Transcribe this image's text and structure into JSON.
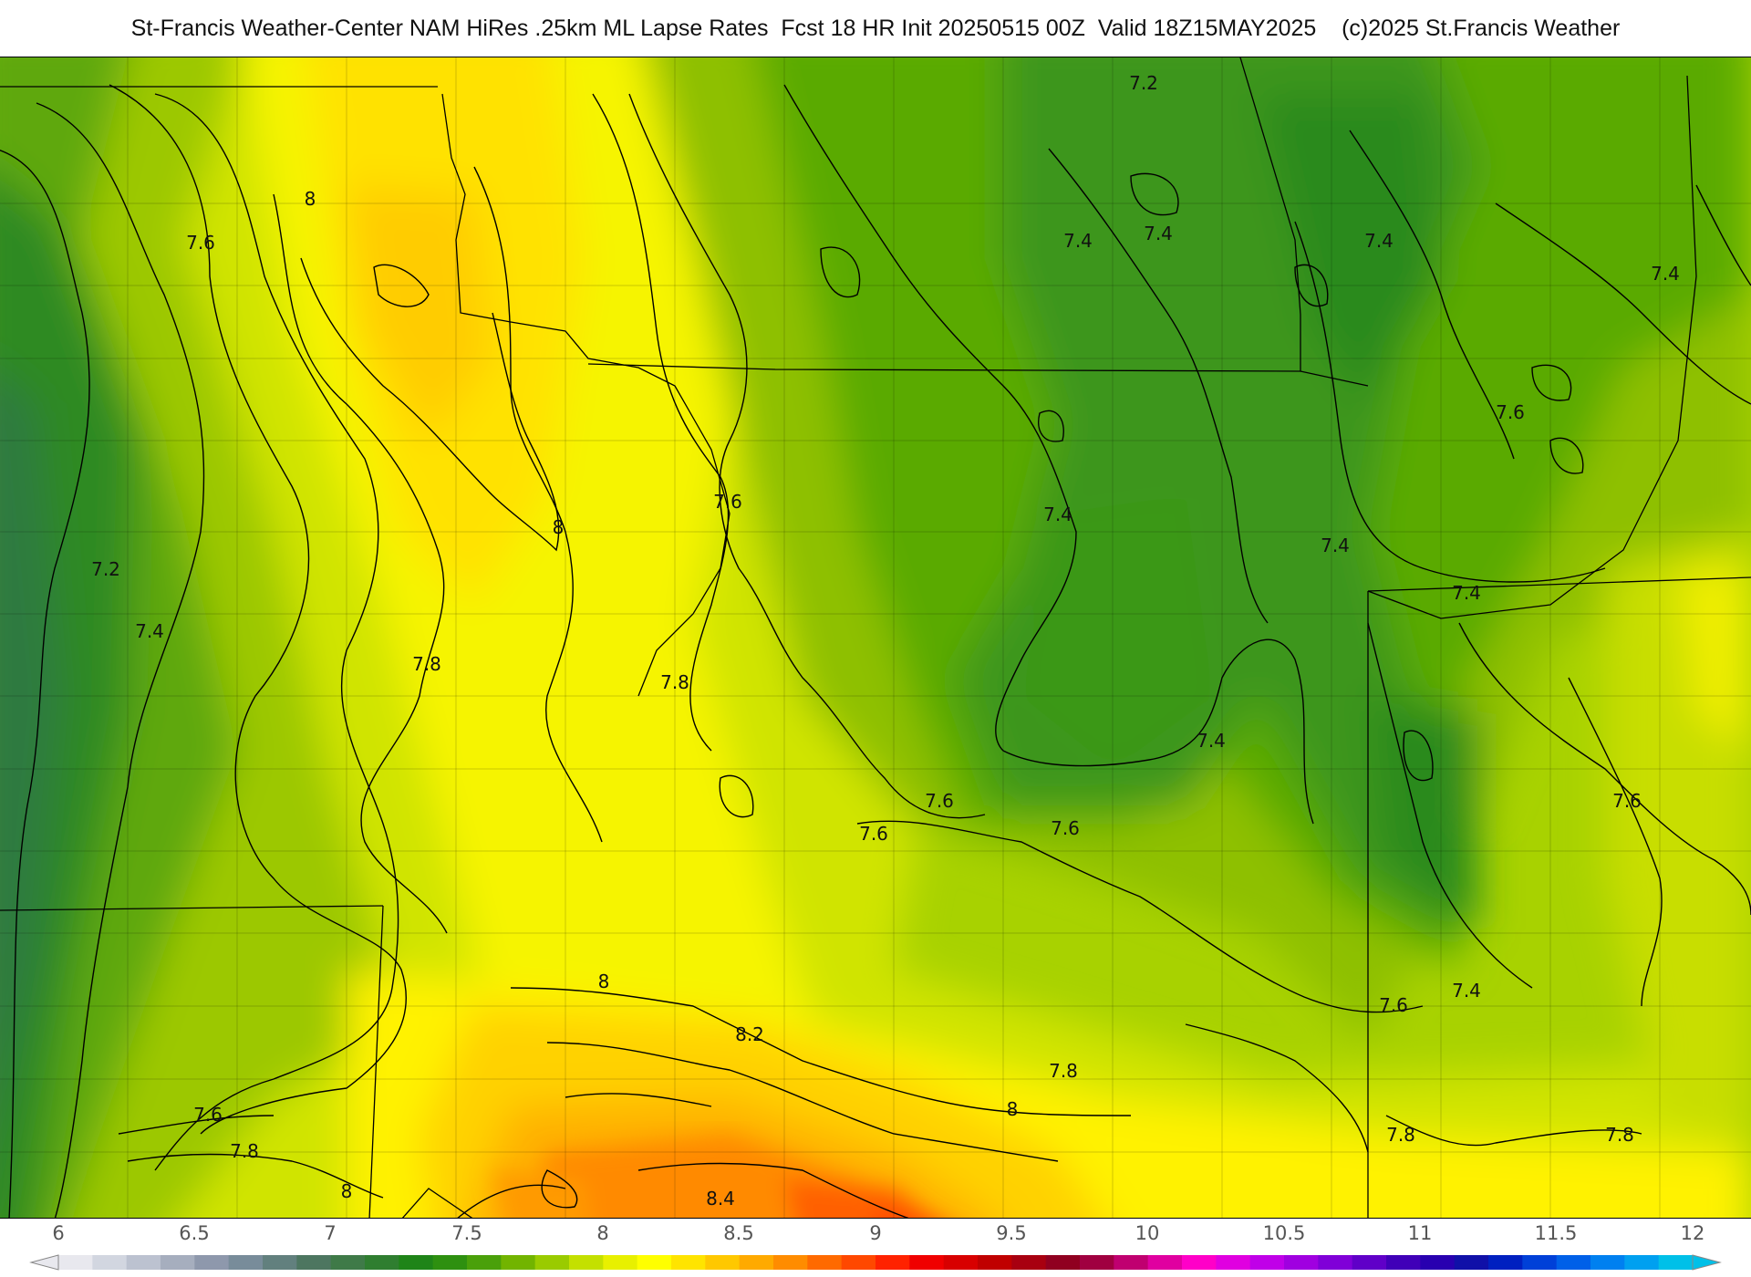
{
  "title": "St-Francis Weather-Center NAM HiRes .25km ML Lapse Rates  Fcst 18 HR Init 20250515 00Z  Valid 18Z15MAY2025    (c)2025 St.Francis Weather",
  "contour_labels": [
    {
      "text": "8",
      "value": 8.0
    },
    {
      "text": "7.6",
      "value": 7.6
    },
    {
      "text": "8",
      "value": 8.0
    },
    {
      "text": "7.2",
      "value": 7.2
    },
    {
      "text": "7.4",
      "value": 7.4
    },
    {
      "text": "7.8",
      "value": 7.8
    },
    {
      "text": "7.8",
      "value": 7.8
    },
    {
      "text": "7.6",
      "value": 7.6
    },
    {
      "text": "7.2",
      "value": 7.2
    },
    {
      "text": "7.4",
      "value": 7.4
    },
    {
      "text": "7.4",
      "value": 7.4
    },
    {
      "text": "7.4",
      "value": 7.4
    },
    {
      "text": "7.4",
      "value": 7.4
    },
    {
      "text": "7.6",
      "value": 7.6
    },
    {
      "text": "7.4",
      "value": 7.4
    },
    {
      "text": "7.4",
      "value": 7.4
    },
    {
      "text": "7.4",
      "value": 7.4
    },
    {
      "text": "7.4",
      "value": 7.4
    },
    {
      "text": "7.6",
      "value": 7.6
    },
    {
      "text": "7.6",
      "value": 7.6
    },
    {
      "text": "7.6",
      "value": 7.6
    },
    {
      "text": "7.6",
      "value": 7.6
    },
    {
      "text": "7.4",
      "value": 7.4
    },
    {
      "text": "7.6",
      "value": 7.6
    },
    {
      "text": "8",
      "value": 8.0
    },
    {
      "text": "8.2",
      "value": 8.2
    },
    {
      "text": "7.8",
      "value": 7.8
    },
    {
      "text": "8",
      "value": 8.0
    },
    {
      "text": "7.8",
      "value": 7.8
    },
    {
      "text": "7.8",
      "value": 7.8
    },
    {
      "text": "7.6",
      "value": 7.6
    },
    {
      "text": "7.8",
      "value": 7.8
    },
    {
      "text": "8",
      "value": 8.0
    },
    {
      "text": "8.4",
      "value": 8.4
    }
  ],
  "colorbar": {
    "min": 6,
    "max": 12,
    "tick_labels": [
      "6",
      "6.5",
      "7",
      "7.5",
      "8",
      "8.5",
      "9",
      "9.5",
      "10",
      "10.5",
      "11",
      "11.5",
      "12"
    ],
    "colors": [
      "#e8e8ee",
      "#d2d6e0",
      "#bcc2d0",
      "#a6aebe",
      "#8e98ac",
      "#788c9a",
      "#62807e",
      "#4d7660",
      "#3f7a48",
      "#2f7e30",
      "#1f8418",
      "#2e9010",
      "#4aa00a",
      "#72b400",
      "#9acb00",
      "#c4e000",
      "#e8f000",
      "#ffff00",
      "#ffe400",
      "#ffc800",
      "#ffaa00",
      "#ff8c00",
      "#ff6a00",
      "#ff4800",
      "#ff2200",
      "#f00000",
      "#d80000",
      "#c00000",
      "#a80010",
      "#900020",
      "#a00040",
      "#c00070",
      "#e000a0",
      "#ff00c8",
      "#e000e0",
      "#c000e8",
      "#a000e0",
      "#8000d8",
      "#6000c8",
      "#4000b8",
      "#2800b0",
      "#1010a8",
      "#0020c0",
      "#0040d8",
      "#0060e8",
      "#0080f0",
      "#00a0f0",
      "#00c0e8"
    ]
  },
  "palette": {
    "green_dark": "#1f7e20",
    "green": "#4aa00a",
    "yellow_green": "#c4e000",
    "yellow": "#ffff00",
    "orange": "#ffc000",
    "orange_dark": "#ff7800",
    "red_orange": "#ff4400"
  }
}
